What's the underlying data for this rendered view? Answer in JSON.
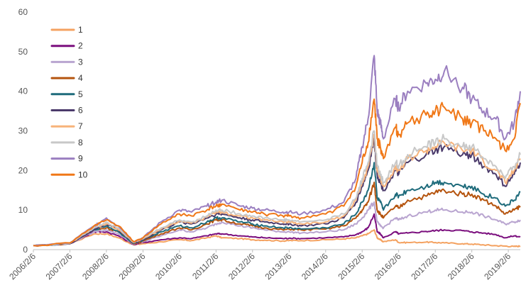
{
  "chart_data": {
    "type": "line",
    "title": "",
    "xlabel": "",
    "ylabel": "",
    "ylim": [
      0,
      60
    ],
    "yticks": [
      0,
      10,
      20,
      30,
      40,
      50,
      60
    ],
    "xticks": [
      "2006/2/6",
      "2007/2/6",
      "2008/2/6",
      "2009/2/6",
      "2010/2/6",
      "2011/2/6",
      "2012/2/6",
      "2013/2/6",
      "2014/2/6",
      "2015/2/6",
      "2016/2/6",
      "2017/2/6",
      "2018/2/6",
      "2019/2/6"
    ],
    "x": [
      "2006/2/6",
      "2007/2/6",
      "2007/10/6",
      "2008/2/6",
      "2008/6/6",
      "2008/11/6",
      "2009/2/6",
      "2009/8/6",
      "2010/2/6",
      "2010/6/6",
      "2010/11/6",
      "2011/2/6",
      "2011/4/6",
      "2011/10/6",
      "2012/2/6",
      "2012/6/6",
      "2012/12/6",
      "2013/2/6",
      "2013/6/6",
      "2014/2/6",
      "2014/8/6",
      "2014/12/6",
      "2015/2/6",
      "2015/4/6",
      "2015/6/6",
      "2015/7/6",
      "2015/8/6",
      "2015/9/6",
      "2016/1/6",
      "2016/2/6",
      "2016/5/6",
      "2016/11/6",
      "2017/2/6",
      "2017/5/6",
      "2017/11/6",
      "2018/2/6",
      "2018/6/6",
      "2018/10/6",
      "2019/1/6",
      "2019/4/6",
      "2019/6/6"
    ],
    "legend": {
      "position": "top-left"
    },
    "grid": false,
    "series": [
      {
        "name": "1",
        "color": "#F4A261",
        "values": [
          1,
          1.5,
          4,
          4,
          3,
          1.2,
          1.5,
          2,
          2.5,
          2.3,
          3,
          3.5,
          3,
          2.8,
          2.5,
          2.4,
          2.2,
          2.3,
          2.3,
          2.5,
          2.7,
          3,
          3.5,
          4,
          5,
          3,
          2.5,
          2,
          2.5,
          1.8,
          1.8,
          1.9,
          1.8,
          1.7,
          1.5,
          1.4,
          1.2,
          1.0,
          0.9,
          0.8,
          0.9
        ]
      },
      {
        "name": "2",
        "color": "#7B0F7E",
        "values": [
          1,
          1.5,
          4.5,
          4.5,
          3.5,
          1.3,
          1.8,
          2.5,
          3,
          2.8,
          3.5,
          4,
          4,
          3.5,
          3.2,
          3,
          2.8,
          2.9,
          2.8,
          3,
          3.2,
          3.8,
          4.5,
          5.5,
          9,
          4.5,
          4,
          3,
          4.5,
          4,
          4.2,
          4.6,
          4.8,
          5,
          4.8,
          4.5,
          4.2,
          3.8,
          3,
          3.5,
          3.2
        ]
      },
      {
        "name": "3",
        "color": "#B9A5D0",
        "values": [
          1,
          1.5,
          4.5,
          5,
          4,
          1.4,
          2,
          3.5,
          5,
          4.5,
          5.5,
          6.5,
          7,
          6,
          5.5,
          5,
          4.5,
          4.5,
          4.2,
          4.5,
          5,
          6.5,
          8,
          10,
          12,
          7,
          6,
          5.5,
          8,
          7.5,
          8.5,
          9.5,
          10,
          10,
          9.5,
          9.5,
          8.5,
          7.5,
          6.5,
          7,
          7.5
        ]
      },
      {
        "name": "4",
        "color": "#B5540E",
        "values": [
          1,
          1.5,
          5,
          5.5,
          4.5,
          1.5,
          2.2,
          4,
          5.5,
          5,
          6.5,
          7.5,
          7.5,
          6.5,
          6,
          5.5,
          5,
          5.2,
          5,
          5.2,
          6,
          8,
          10,
          12,
          17,
          10,
          9,
          8,
          11,
          10.5,
          12.5,
          13.5,
          14.5,
          15,
          14,
          14,
          12.5,
          11,
          9,
          10,
          11
        ]
      },
      {
        "name": "5",
        "color": "#1E6B7B",
        "values": [
          1,
          1.5,
          5,
          6,
          4.5,
          1.6,
          2.4,
          4.5,
          6,
          5.5,
          7,
          8,
          8,
          7,
          6.5,
          6,
          5.5,
          5.5,
          5.2,
          5.5,
          6.5,
          9,
          12,
          15,
          22,
          13,
          12,
          10,
          14,
          13.5,
          15,
          16,
          17,
          17,
          16,
          16,
          14,
          13,
          11,
          12.5,
          14.5
        ]
      },
      {
        "name": "6",
        "color": "#4B3A6B",
        "values": [
          1,
          1.5,
          5,
          6.5,
          5,
          1.7,
          2.5,
          5,
          7,
          6.5,
          8,
          9,
          9,
          8,
          7.5,
          7,
          6.5,
          6.5,
          6,
          6.5,
          8,
          12,
          16,
          20,
          28,
          19,
          17,
          15,
          20,
          19,
          22,
          24,
          25,
          26,
          24,
          24,
          21,
          19,
          16,
          19,
          22
        ]
      },
      {
        "name": "7",
        "color": "#F7B37A",
        "values": [
          1,
          1.6,
          5.5,
          6.5,
          5,
          1.8,
          2.7,
          5.2,
          7.2,
          6.7,
          8.2,
          9.5,
          9.5,
          8.5,
          8,
          7.5,
          7,
          7,
          6.5,
          7,
          8.5,
          12.5,
          17,
          21,
          29,
          20,
          18,
          16,
          21,
          20,
          23,
          25,
          26,
          27,
          25,
          25,
          22,
          20,
          17,
          20,
          23
        ]
      },
      {
        "name": "8",
        "color": "#C8C8C8",
        "values": [
          1,
          1.6,
          5.5,
          7,
          5.5,
          1.9,
          2.8,
          5.5,
          7.5,
          7,
          8.5,
          10,
          10,
          9,
          8.5,
          8,
          7.5,
          7.5,
          7,
          7.5,
          9,
          13,
          18,
          22,
          30,
          21,
          19,
          17,
          22,
          21,
          24,
          26,
          27,
          28,
          26,
          26,
          23,
          21,
          18,
          21,
          24
        ]
      },
      {
        "name": "9",
        "color": "#9B7FC0",
        "values": [
          1,
          1.7,
          6,
          8,
          6,
          2,
          3,
          7,
          10,
          9.5,
          11,
          12,
          12.5,
          11,
          10.5,
          10,
          9.5,
          9.5,
          9,
          10,
          12,
          18,
          26,
          33,
          49,
          35,
          32,
          28,
          38,
          36,
          40,
          42,
          43,
          45,
          41,
          38,
          35,
          33,
          28,
          32,
          40
        ]
      },
      {
        "name": "10",
        "color": "#F07818",
        "values": [
          1,
          1.7,
          6,
          7.5,
          6,
          2,
          3,
          6.5,
          9,
          8.5,
          10,
          11,
          11.5,
          10,
          9.5,
          9,
          8.5,
          8.5,
          8,
          9,
          11,
          16,
          22,
          27,
          38,
          28,
          26,
          23,
          31,
          29,
          32,
          34,
          35,
          36,
          33,
          32,
          30,
          28,
          25,
          28,
          37
        ]
      }
    ]
  }
}
